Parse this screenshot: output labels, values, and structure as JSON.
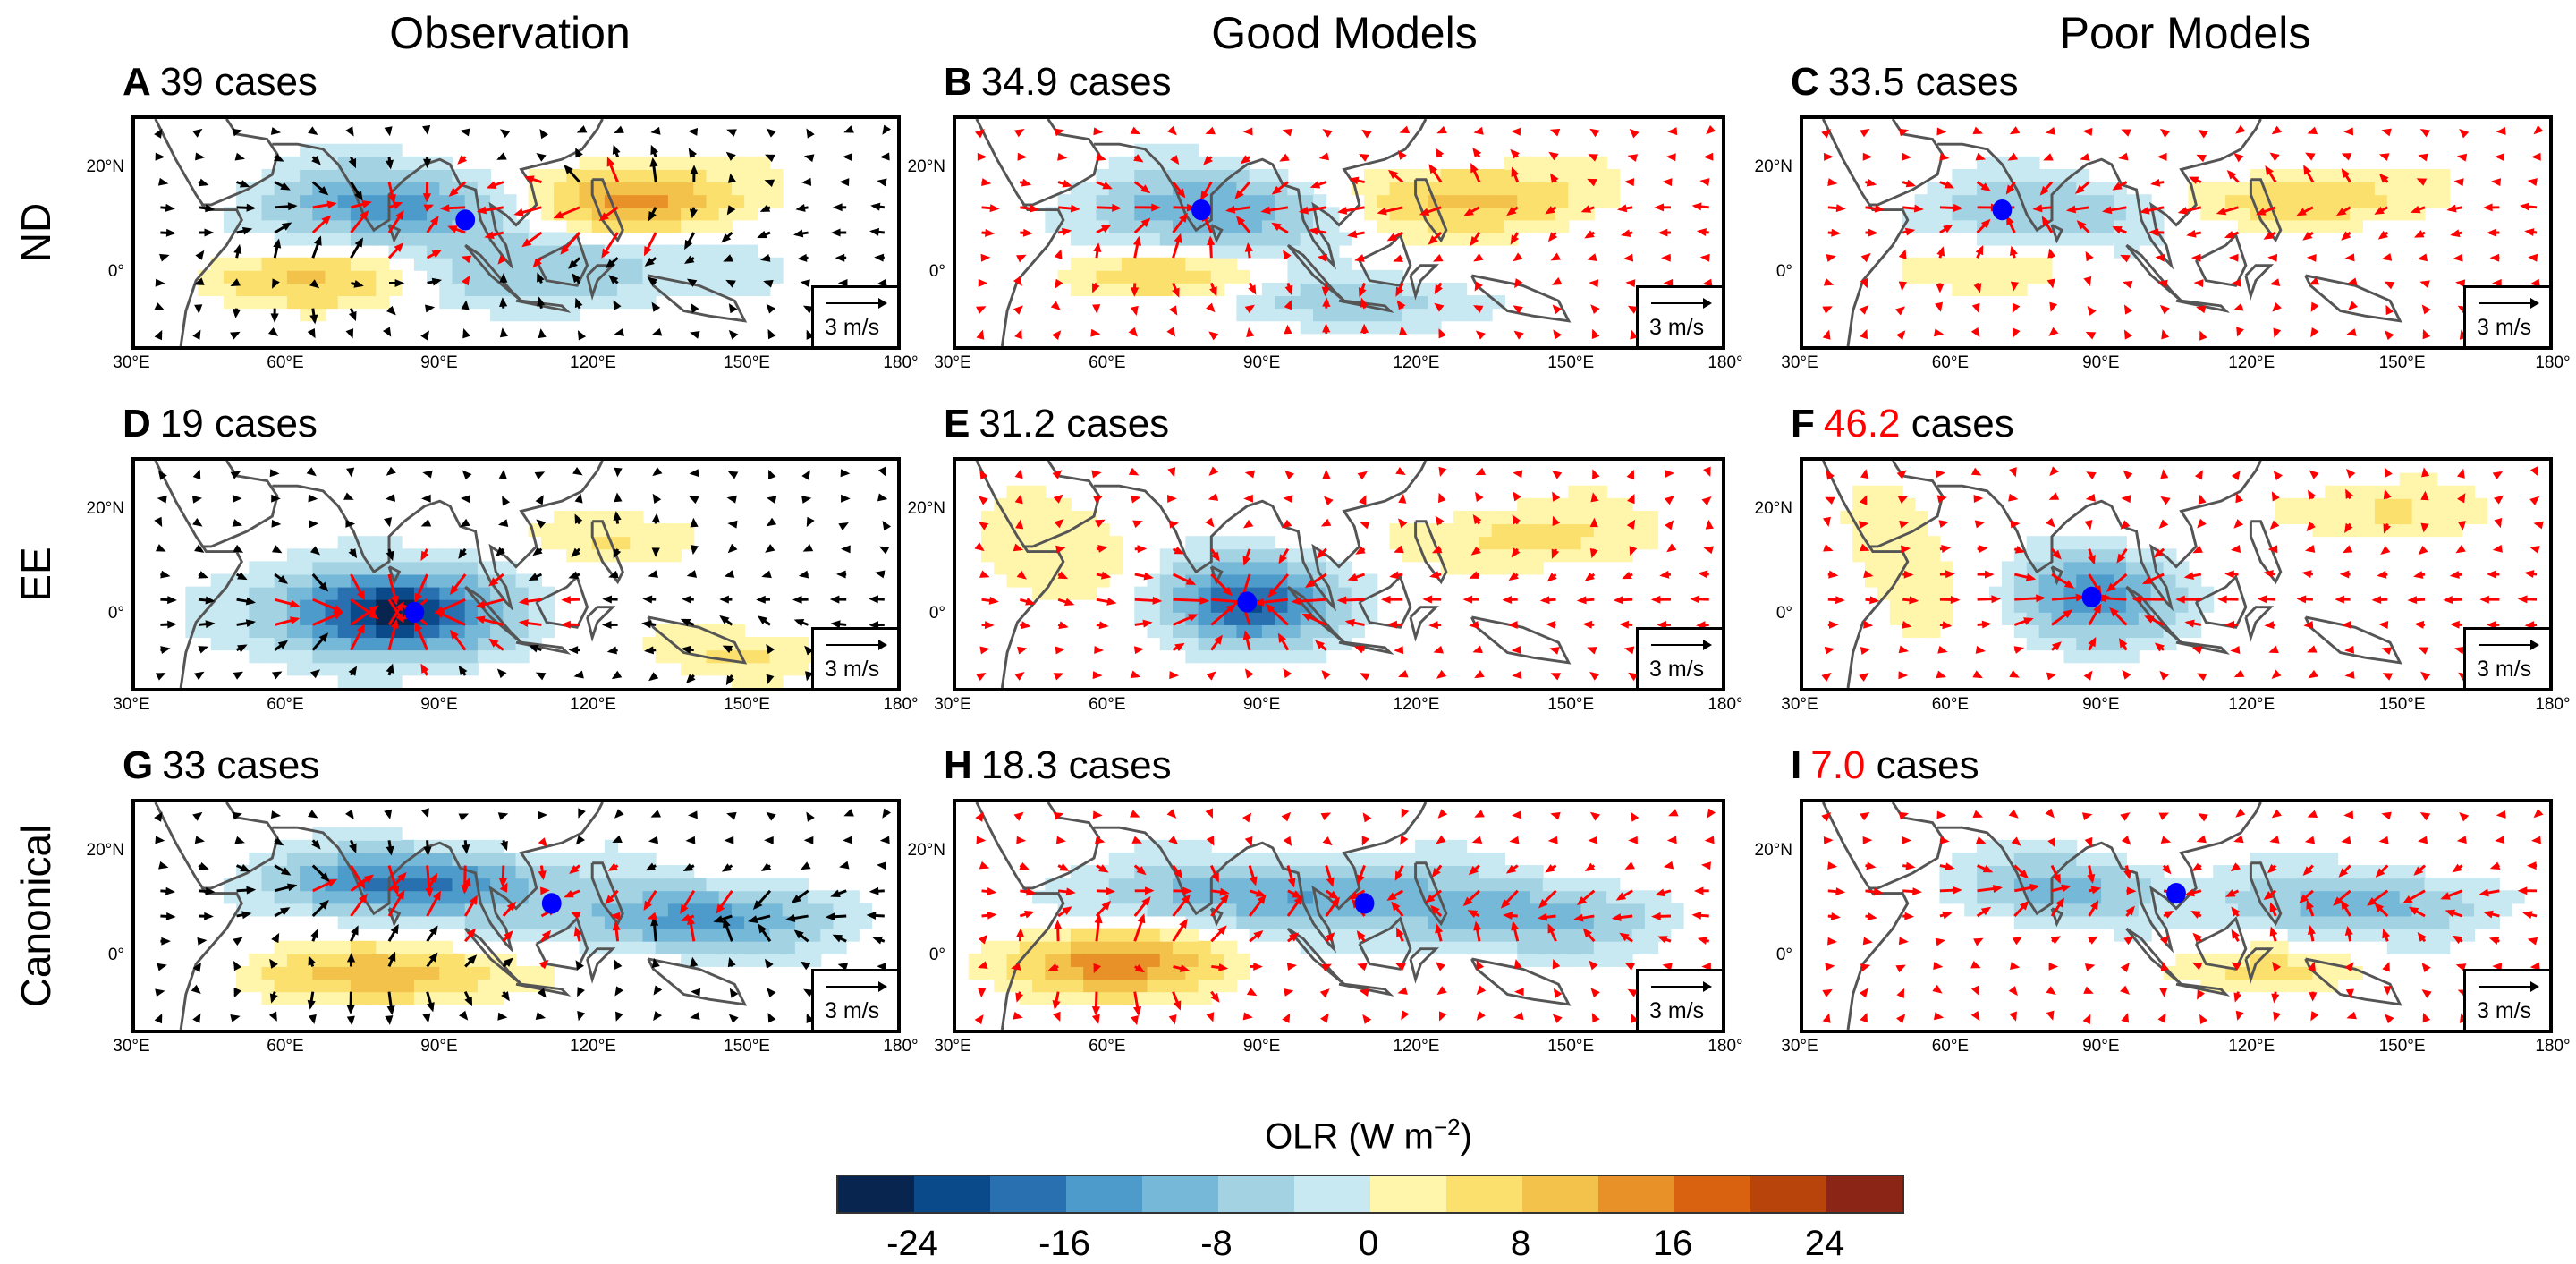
{
  "column_titles": [
    "Observation",
    "Good Models",
    "Poor Models"
  ],
  "row_labels": [
    "ND",
    "EE",
    "Canonical"
  ],
  "lon_ticks": [
    "30°E",
    "60°E",
    "90°E",
    "120°E",
    "150°E",
    "180°"
  ],
  "lat_ticks": [
    "20°N",
    "0°"
  ],
  "scale_label": "3 m/s",
  "colors": {
    "highlight": "#ff0000",
    "vector_model": "#ff0000",
    "vector_obs": "#000000",
    "dot": "#0000ff",
    "coast": "#555555"
  },
  "panels": [
    {
      "letter": "A",
      "count": "39",
      "suffix": "cases",
      "highlight": false,
      "dot": [
        95,
        10
      ],
      "obs": true,
      "features": [
        [
          80,
          13,
          -14,
          22,
          7
        ],
        [
          128,
          14,
          14,
          18,
          6
        ],
        [
          62,
          -2,
          8,
          20,
          5
        ],
        [
          115,
          0,
          -8,
          25,
          7
        ]
      ]
    },
    {
      "letter": "B",
      "count": "34.9",
      "suffix": "cases",
      "highlight": false,
      "dot": [
        78,
        12
      ],
      "obs": false,
      "features": [
        [
          80,
          12,
          -12,
          22,
          7
        ],
        [
          130,
          14,
          10,
          20,
          6
        ],
        [
          70,
          -1,
          6,
          20,
          4
        ],
        [
          110,
          -6,
          -6,
          25,
          5
        ]
      ]
    },
    {
      "letter": "C",
      "count": "33.5",
      "suffix": "cases",
      "highlight": false,
      "dot": [
        70,
        12
      ],
      "obs": false,
      "features": [
        [
          78,
          12,
          -8,
          22,
          6
        ],
        [
          130,
          14,
          7,
          22,
          5
        ],
        [
          60,
          0,
          3,
          20,
          4
        ]
      ]
    },
    {
      "letter": "D",
      "count": "19",
      "suffix": "cases",
      "highlight": false,
      "dot": [
        85,
        0
      ],
      "obs": true,
      "features": [
        [
          80,
          0,
          -26,
          20,
          8
        ],
        [
          125,
          15,
          5,
          15,
          5
        ],
        [
          150,
          -8,
          5,
          15,
          5
        ]
      ]
    },
    {
      "letter": "E",
      "count": "31.2",
      "suffix": "cases",
      "highlight": false,
      "dot": [
        87,
        2
      ],
      "obs": false,
      "features": [
        [
          87,
          2,
          -20,
          16,
          8
        ],
        [
          140,
          15,
          5,
          25,
          6
        ],
        [
          50,
          10,
          4,
          15,
          10
        ]
      ]
    },
    {
      "letter": "F",
      "count": "46.2",
      "suffix": "cases",
      "highlight": true,
      "dot": [
        88,
        3
      ],
      "obs": false,
      "features": [
        [
          88,
          3,
          -15,
          15,
          8
        ],
        [
          140,
          20,
          4,
          25,
          5
        ],
        [
          50,
          5,
          3,
          12,
          15
        ]
      ]
    },
    {
      "letter": "G",
      "count": "33",
      "suffix": "cases",
      "highlight": false,
      "dot": [
        112,
        10
      ],
      "obs": true,
      "features": [
        [
          85,
          14,
          -18,
          25,
          6
        ],
        [
          140,
          7,
          -14,
          25,
          6
        ],
        [
          80,
          -4,
          10,
          25,
          5
        ]
      ]
    },
    {
      "letter": "H",
      "count": "18.3",
      "suffix": "cases",
      "highlight": false,
      "dot": [
        110,
        10
      ],
      "obs": false,
      "features": [
        [
          95,
          12,
          -12,
          35,
          6
        ],
        [
          140,
          7,
          -10,
          25,
          6
        ],
        [
          60,
          -2,
          14,
          20,
          6
        ]
      ]
    },
    {
      "letter": "I",
      "count": "7.0",
      "suffix": "cases",
      "highlight": true,
      "dot": [
        105,
        12
      ],
      "obs": false,
      "features": [
        [
          82,
          13,
          -10,
          18,
          6
        ],
        [
          140,
          10,
          -10,
          25,
          6
        ],
        [
          120,
          -3,
          4,
          25,
          4
        ]
      ]
    }
  ],
  "colorbar": {
    "title": "OLR (W m",
    "title_sup": "−2",
    "title_end": ")",
    "labels": [
      "-24",
      "-16",
      "-8",
      "0",
      "8",
      "16",
      "24"
    ],
    "bins": [
      "#08254f",
      "#0a4a8a",
      "#2870b0",
      "#4d9bcb",
      "#75b8d8",
      "#a3d3e3",
      "#c9e9f2",
      "#fff5ab",
      "#fbe06e",
      "#f2c24a",
      "#e89128",
      "#d8620f",
      "#b8430b",
      "#8b2616"
    ],
    "min": -28,
    "max": 28,
    "step": 4
  }
}
